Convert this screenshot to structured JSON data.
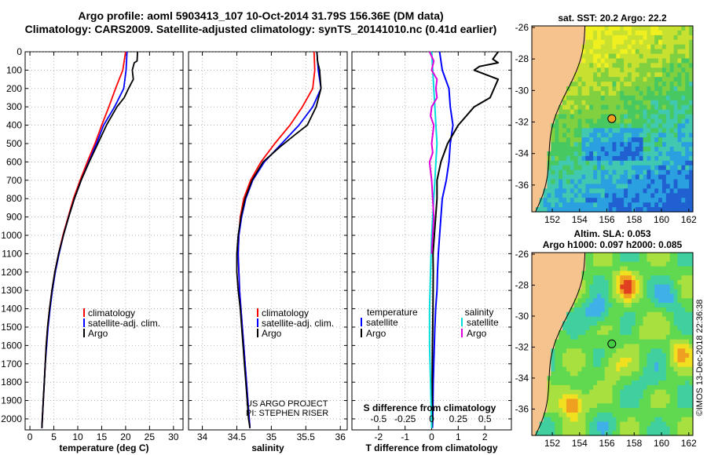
{
  "titles": {
    "line1": "Argo profile: aoml 5903413_107 10-Oct-2014 31.79S 156.36E (DM data)",
    "line2": "Climatology: CARS2009. Satellite-adjusted climatology: synTS_20141010.nc (0.41d earlier)"
  },
  "colors": {
    "climatology": "#ff0000",
    "satellite": "#0000ff",
    "argo": "#000000",
    "sat_salinity": "#00dddd",
    "argo_salinity": "#dd00dd",
    "land": "#f6c28e"
  },
  "chart_data": [
    {
      "type": "line",
      "xlabel": "temperature (deg C)",
      "ylabel": "",
      "xlim": [
        -1,
        32
      ],
      "ylim": [
        2060,
        0
      ],
      "xticks": [
        "0",
        "5",
        "10",
        "15",
        "20",
        "25",
        "30"
      ],
      "yticks": [
        "0",
        "100",
        "200",
        "300",
        "400",
        "500",
        "600",
        "700",
        "800",
        "900",
        "1000",
        "1100",
        "1200",
        "1300",
        "1400",
        "1500",
        "1600",
        "1700",
        "1800",
        "1900",
        "2000"
      ],
      "legend": {
        "placement": "lower-right",
        "entries": [
          "climatology",
          "satellite-adj. clim.",
          "Argo"
        ]
      },
      "series": [
        {
          "name": "climatology",
          "color": "#ff0000",
          "x": [
            20.0,
            19.4,
            17.9,
            16.5,
            15.0,
            13.6,
            12.0,
            10.5,
            9.1,
            8.0,
            6.9,
            6.0,
            5.2,
            4.6,
            4.1,
            3.7,
            3.4,
            3.2,
            3.0,
            2.8,
            2.6,
            2.5
          ],
          "y": [
            0,
            100,
            200,
            300,
            400,
            500,
            600,
            700,
            800,
            900,
            1000,
            1100,
            1200,
            1300,
            1400,
            1500,
            1600,
            1700,
            1800,
            1900,
            2000,
            2050
          ]
        },
        {
          "name": "satellite-adj. clim.",
          "color": "#0000ff",
          "x": [
            20.3,
            20.1,
            19.6,
            17.7,
            15.4,
            13.9,
            12.3,
            10.7,
            9.3,
            8.1,
            7.0,
            6.1,
            5.3,
            4.7,
            4.2,
            3.8,
            3.5,
            3.2,
            3.0,
            2.8,
            2.6,
            2.5
          ],
          "y": [
            0,
            100,
            200,
            300,
            400,
            500,
            600,
            700,
            800,
            900,
            1000,
            1100,
            1200,
            1300,
            1400,
            1500,
            1600,
            1700,
            1800,
            1900,
            2000,
            2050
          ]
        },
        {
          "name": "Argo",
          "color": "#000000",
          "x": [
            22.5,
            22.4,
            21.8,
            21.4,
            21.6,
            20.6,
            19.7,
            18.2,
            16.0,
            14.2,
            12.4,
            10.7,
            9.3,
            8.1,
            7.0,
            6.0,
            5.2,
            4.6,
            4.1,
            3.7,
            3.4,
            3.2,
            3.0,
            2.8,
            2.6,
            2.5
          ],
          "y": [
            0,
            50,
            60,
            100,
            150,
            200,
            250,
            300,
            400,
            500,
            600,
            700,
            800,
            900,
            1000,
            1100,
            1200,
            1300,
            1400,
            1500,
            1600,
            1700,
            1800,
            1900,
            2000,
            2050
          ]
        }
      ]
    },
    {
      "type": "line",
      "xlabel": "salinity",
      "ylabel": "",
      "xlim": [
        33.8,
        36.1
      ],
      "ylim": [
        2060,
        0
      ],
      "xticks": [
        "34",
        "34.5",
        "35",
        "35.5",
        "36"
      ],
      "annotations": [
        "US ARGO PROJECT",
        "PI: STEPHEN RISER"
      ],
      "legend": {
        "placement": "lower-right",
        "entries": [
          "climatology",
          "satellite-adj. clim.",
          "Argo"
        ]
      },
      "series": [
        {
          "name": "climatology",
          "color": "#ff0000",
          "x": [
            35.62,
            35.63,
            35.6,
            35.45,
            35.27,
            35.05,
            34.85,
            34.7,
            34.6,
            34.55,
            34.53,
            34.52,
            34.53,
            34.54,
            34.56,
            34.58,
            34.6,
            34.62,
            34.64,
            34.66,
            34.68,
            34.69
          ],
          "y": [
            0,
            100,
            200,
            300,
            400,
            500,
            600,
            700,
            800,
            900,
            1000,
            1100,
            1200,
            1300,
            1400,
            1500,
            1600,
            1700,
            1800,
            1900,
            2000,
            2050
          ]
        },
        {
          "name": "satellite-adj. clim.",
          "color": "#0000ff",
          "x": [
            35.66,
            35.68,
            35.72,
            35.6,
            35.4,
            35.15,
            34.9,
            34.73,
            34.63,
            34.57,
            34.53,
            34.52,
            34.53,
            34.54,
            34.56,
            34.58,
            34.6,
            34.62,
            34.64,
            34.66,
            34.68,
            34.69
          ],
          "y": [
            0,
            100,
            200,
            300,
            400,
            500,
            600,
            700,
            800,
            900,
            1000,
            1100,
            1200,
            1300,
            1400,
            1500,
            1600,
            1700,
            1800,
            1900,
            2000,
            2050
          ]
        },
        {
          "name": "Argo",
          "color": "#000000",
          "x": [
            35.66,
            35.67,
            35.7,
            35.72,
            35.65,
            35.52,
            35.35,
            35.12,
            34.88,
            34.72,
            34.62,
            34.56,
            34.52,
            34.5,
            34.5,
            34.52,
            34.55,
            34.57,
            34.59,
            34.61,
            34.63,
            34.65,
            34.67,
            34.69
          ],
          "y": [
            0,
            50,
            100,
            200,
            300,
            400,
            450,
            520,
            600,
            700,
            800,
            900,
            1000,
            1100,
            1200,
            1300,
            1400,
            1500,
            1600,
            1700,
            1800,
            1900,
            2000,
            2050
          ]
        }
      ]
    },
    {
      "type": "line",
      "xlabel": "T difference from climatology",
      "ylabel": "",
      "xlim": [
        -3,
        3
      ],
      "ylim": [
        2060,
        0
      ],
      "xticks": [
        "-2",
        "-1",
        "0",
        "1",
        "2"
      ],
      "secondary_xlabel": "S difference from climatology",
      "secondary_xlim": [
        -0.75,
        0.75
      ],
      "secondary_xticks": [
        "-0.5",
        "-0.25",
        "0",
        "0.25",
        "0.5"
      ],
      "legend": {
        "placement": "lower-center",
        "temperature_title": "temperature",
        "salinity_title": "salinity",
        "entries": [
          "satellite",
          "Argo",
          "satellite",
          "Argo"
        ]
      },
      "series": [
        {
          "name": "satellite",
          "color": "#0000ff",
          "axis": "temperature",
          "x": [
            0.3,
            0.4,
            0.65,
            0.7,
            0.8,
            0.7,
            0.65,
            0.55,
            0.4,
            0.35,
            0.3,
            0.25,
            0.22,
            0.2,
            0.15,
            0.12,
            0.1,
            0.08,
            0.06,
            0.05,
            0.04,
            0.03
          ],
          "y": [
            0,
            100,
            200,
            300,
            400,
            500,
            600,
            700,
            800,
            900,
            1000,
            1100,
            1200,
            1300,
            1400,
            1500,
            1600,
            1700,
            1800,
            1900,
            2000,
            2050
          ]
        },
        {
          "name": "Argo",
          "color": "#000000",
          "axis": "temperature",
          "x": [
            2.5,
            2.3,
            2.5,
            1.8,
            1.6,
            2.5,
            2.2,
            1.6,
            1.3,
            1.0,
            0.6,
            0.35,
            0.2,
            0.2,
            0.15,
            0.1,
            0.05,
            0.06,
            0.05,
            0.03,
            0.02,
            0.02,
            0.01
          ],
          "y": [
            0,
            40,
            60,
            80,
            100,
            150,
            250,
            300,
            350,
            400,
            500,
            600,
            700,
            800,
            900,
            1000,
            1100,
            1200,
            1400,
            1600,
            1800,
            2000,
            2050
          ]
        },
        {
          "name": "satellite",
          "color": "#00dddd",
          "axis": "salinity",
          "x": [
            0.0,
            0.01,
            0.02,
            0.03,
            0.04,
            0.05,
            0.04,
            0.03,
            0.02,
            0.01,
            0.0,
            -0.01,
            -0.02,
            -0.02,
            -0.01,
            0.0
          ],
          "y": [
            0,
            100,
            200,
            300,
            400,
            500,
            600,
            700,
            800,
            900,
            1000,
            1200,
            1400,
            1600,
            1800,
            2050
          ]
        },
        {
          "name": "Argo",
          "color": "#dd00dd",
          "axis": "salinity",
          "x": [
            -0.02,
            0.02,
            0.0,
            0.05,
            0.04,
            0.05,
            0.0,
            -0.01,
            0.02,
            0.01,
            0.0,
            0.01,
            -0.02,
            -0.01,
            0.0,
            0.02,
            0.0
          ],
          "y": [
            0,
            50,
            100,
            150,
            200,
            250,
            300,
            350,
            400,
            450,
            500,
            550,
            600,
            650,
            700,
            900,
            1100
          ]
        }
      ]
    },
    {
      "type": "heatmap",
      "title": "sat. SST: 20.2  Argo: 22.2",
      "xlim": [
        150.5,
        162.3
      ],
      "ylim": [
        -37.7,
        -25.9
      ],
      "xticks": [
        "152",
        "154",
        "156",
        "158",
        "160",
        "162"
      ],
      "yticks": [
        "-26",
        "-28",
        "-30",
        "-32",
        "-34",
        "-36"
      ],
      "marker": {
        "lon": 156.36,
        "lat": -31.79
      }
    },
    {
      "type": "heatmap",
      "title": "Altim. SLA: 0.053",
      "subtitle": "Argo h1000: 0.097  h2000: 0.085",
      "xlim": [
        150.5,
        162.3
      ],
      "ylim": [
        -37.7,
        -25.9
      ],
      "xticks": [
        "152",
        "154",
        "156",
        "158",
        "160",
        "162"
      ],
      "yticks": [
        "-26",
        "-28",
        "-30",
        "-32",
        "-34",
        "-36"
      ],
      "marker": {
        "lon": 156.36,
        "lat": -31.79
      }
    }
  ],
  "credit": "©IMOS 13-Dec-2018 22:36:38"
}
